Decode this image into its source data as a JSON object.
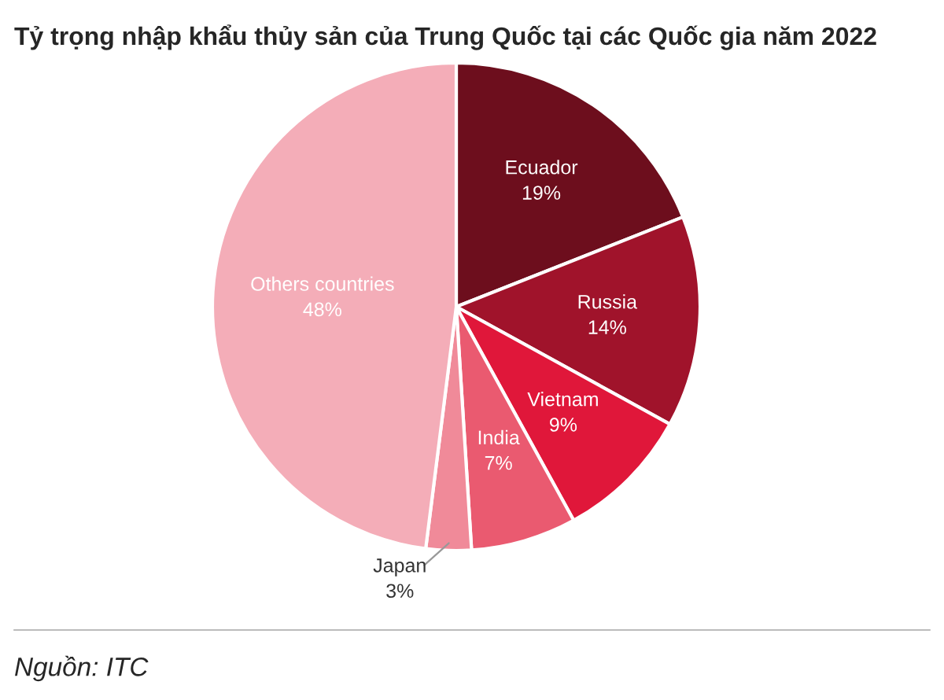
{
  "chart_data": {
    "type": "pie",
    "title": "Tỷ trọng nhập khẩu thủy sản của Trung Quốc tại các Quốc gia năm 2022",
    "categories": [
      "Ecuador",
      "Russia",
      "Vietnam",
      "India",
      "Japan",
      "Others countries"
    ],
    "values": [
      19,
      14,
      9,
      7,
      3,
      48
    ],
    "colors": [
      "#6d0e1d",
      "#a0132b",
      "#e0173a",
      "#ea5a70",
      "#f08a99",
      "#f4adb8"
    ],
    "value_labels": [
      "19%",
      "14%",
      "9%",
      "7%",
      "3%",
      "48%"
    ],
    "annotations": [
      "Nguồn: ITC"
    ],
    "legend": false
  }
}
